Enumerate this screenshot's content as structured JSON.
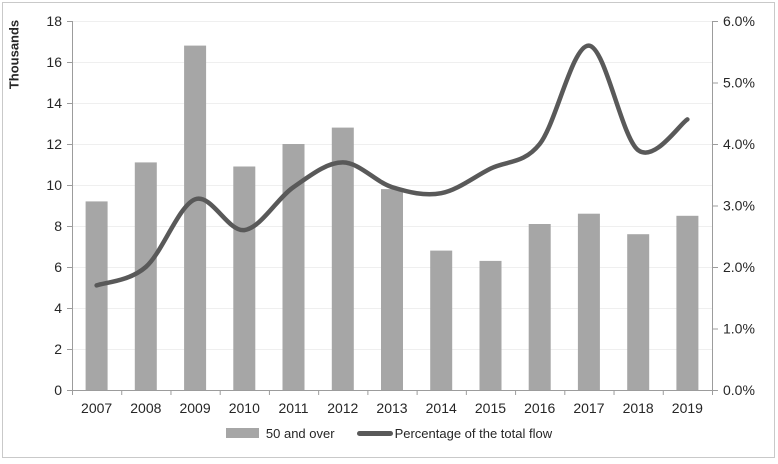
{
  "chart_data": {
    "type": "combo-bar-line",
    "categories": [
      "2007",
      "2008",
      "2009",
      "2010",
      "2011",
      "2012",
      "2013",
      "2014",
      "2015",
      "2016",
      "2017",
      "2018",
      "2019"
    ],
    "series": [
      {
        "name": "50 and over",
        "type": "bar",
        "axis": "left",
        "color": "#a6a6a6",
        "values": [
          9.2,
          11.1,
          16.8,
          10.9,
          12.0,
          12.8,
          9.8,
          6.8,
          6.3,
          8.1,
          8.6,
          7.6,
          8.5
        ]
      },
      {
        "name": "Percentage of the total flow",
        "type": "line",
        "smooth": true,
        "axis": "right",
        "color": "#595959",
        "values": [
          1.7,
          2.0,
          3.1,
          2.6,
          3.3,
          3.7,
          3.3,
          3.2,
          3.6,
          4.0,
          5.6,
          3.9,
          4.4
        ]
      }
    ],
    "left_axis": {
      "title": "Thousands",
      "min": 0,
      "max": 18,
      "step": 2,
      "tick_labels": [
        "0",
        "2",
        "4",
        "6",
        "8",
        "10",
        "12",
        "14",
        "16",
        "18"
      ]
    },
    "right_axis": {
      "min": 0,
      "max": 6,
      "step": 1,
      "tick_labels": [
        "0.0%",
        "1.0%",
        "2.0%",
        "3.0%",
        "4.0%",
        "5.0%",
        "6.0%"
      ]
    },
    "grid": true,
    "legend_position": "bottom"
  },
  "legend": {
    "bar_label": "50 and over",
    "line_label": "Percentage of the total flow"
  },
  "colors": {
    "bar": "#a6a6a6",
    "line": "#595959",
    "gridline": "#efefef",
    "axis": "#9c9c9c",
    "text": "#262626",
    "border": "#c9c9c9",
    "background": "#ffffff"
  }
}
